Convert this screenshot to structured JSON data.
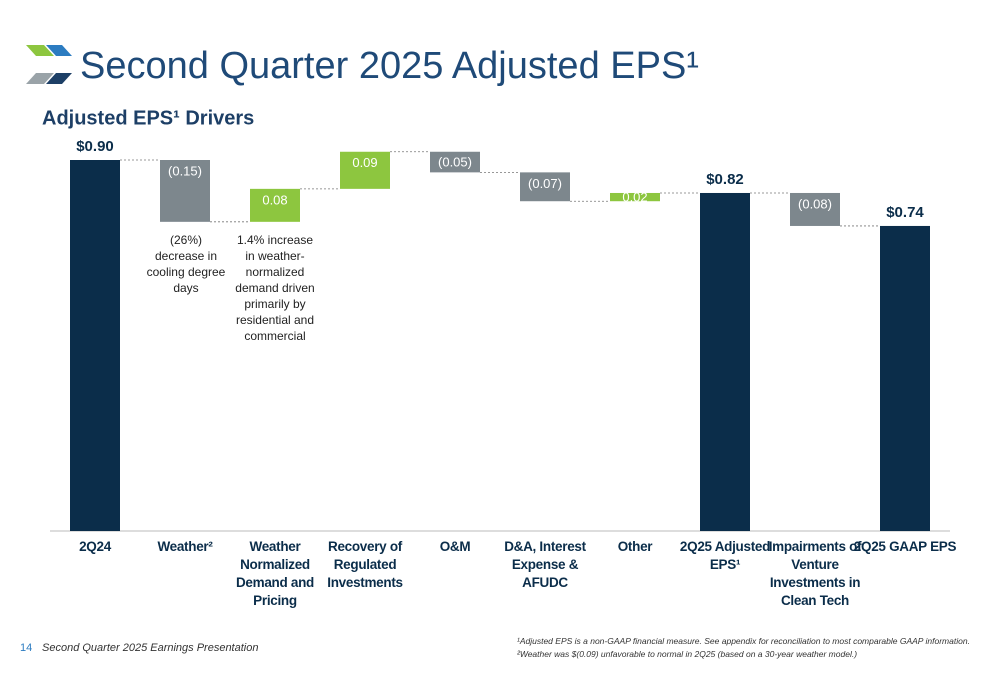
{
  "title": "Second Quarter 2025 Adjusted EPS¹",
  "chart_data": {
    "type": "waterfall",
    "title": "Adjusted EPS¹ Drivers",
    "categories": [
      "2Q24",
      "Weather²",
      "Weather Normalized Demand and Pricing",
      "Recovery of Regulated Investments",
      "O&M",
      "D&A, Interest Expense & AFUDC",
      "Other",
      "2Q25 Adjusted EPS¹",
      "Impairments of Venture Investments in Clean Tech",
      "2Q25 GAAP EPS"
    ],
    "values": [
      0.9,
      -0.15,
      0.08,
      0.09,
      -0.05,
      -0.07,
      0.02,
      0.82,
      -0.08,
      0.74
    ],
    "value_labels": [
      "$0.90",
      "(0.15)",
      "0.08",
      "0.09",
      "(0.05)",
      "(0.07)",
      "0.02",
      "$0.82",
      "(0.08)",
      "$0.74"
    ],
    "measure": [
      "absolute",
      "relative",
      "relative",
      "relative",
      "relative",
      "relative",
      "relative",
      "absolute",
      "relative",
      "absolute"
    ],
    "total_color": "#0b2d4a",
    "increase_color": "#8dc63f",
    "decrease_color": "#7d878d",
    "ylim": [
      0,
      0.9
    ],
    "annotations": [
      "(26%) decrease in cooling degree days",
      "1.4% increase in weather-normalized demand driven primarily by residential and commercial"
    ]
  },
  "footer": {
    "page": "14",
    "text": "Second Quarter 2025 Earnings Presentation"
  },
  "footnotes": [
    "¹Adjusted EPS is a non-GAAP financial measure. See appendix for reconciliation to most comparable GAAP information.",
    "²Weather was $(0.09) unfavorable to normal in 2Q25 (based on a 30-year weather model.)"
  ]
}
